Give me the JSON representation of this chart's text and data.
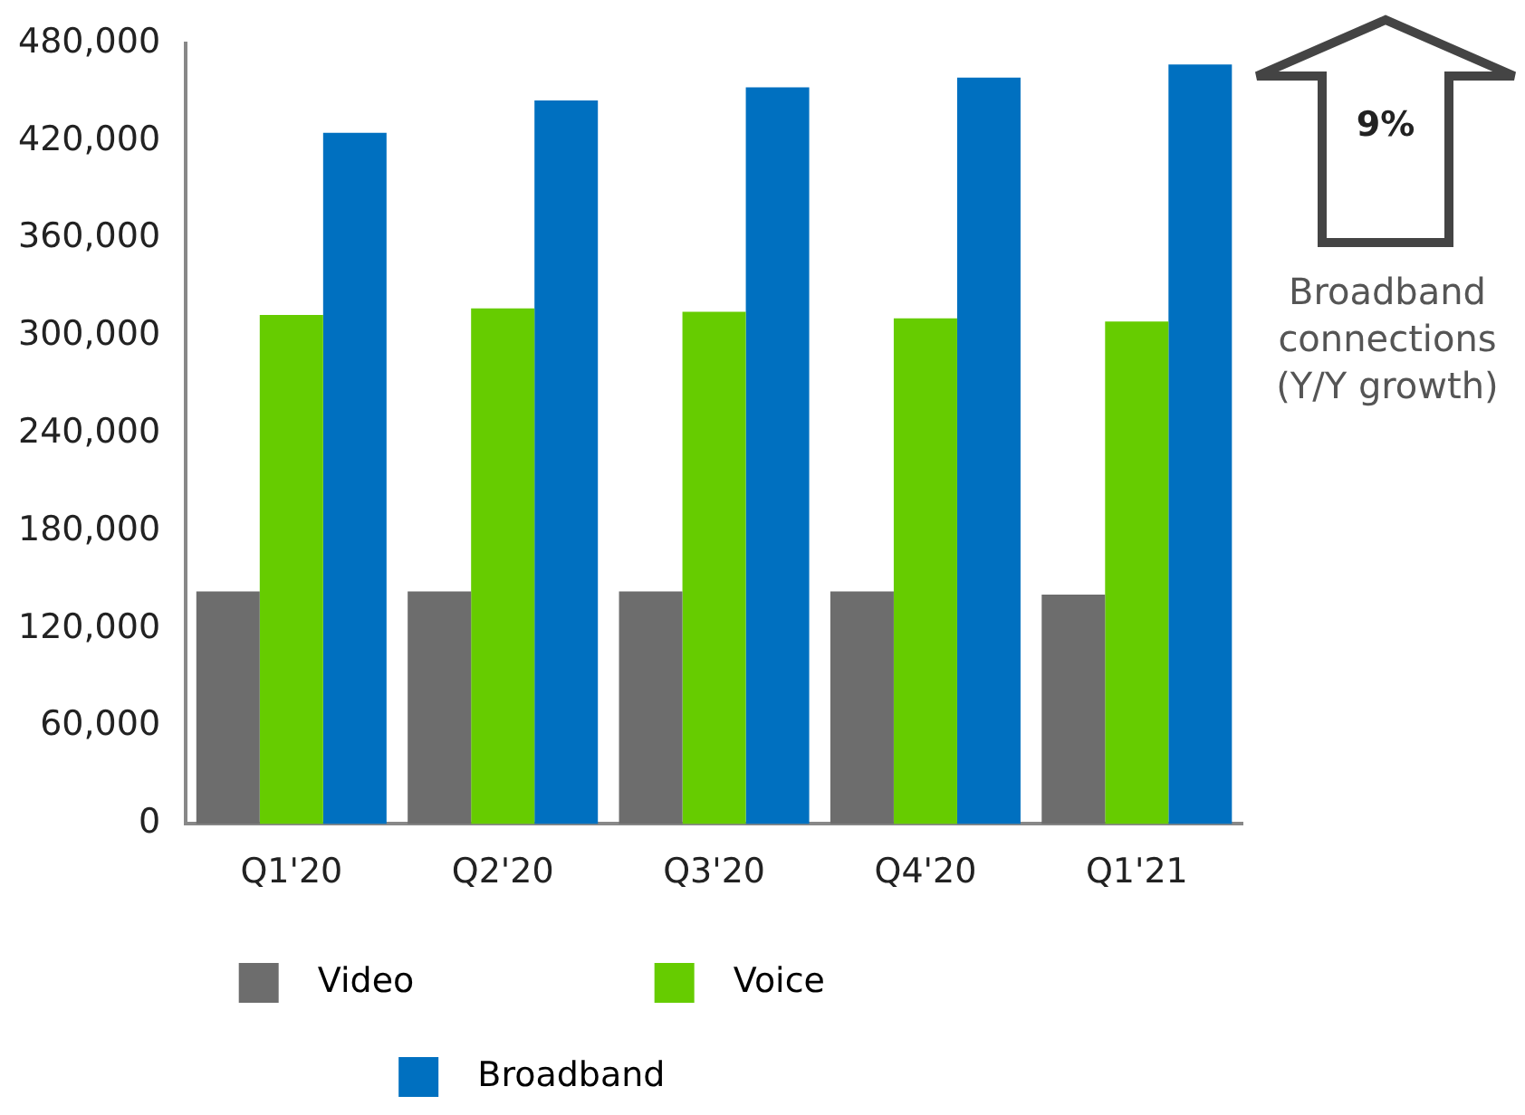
{
  "chart_data": {
    "type": "bar",
    "categories": [
      "Q1'20",
      "Q2'20",
      "Q3'20",
      "Q4'20",
      "Q1'21"
    ],
    "series": [
      {
        "name": "Video",
        "color": "#6d6d6d",
        "values": [
          143000,
          143000,
          143000,
          143000,
          141000
        ]
      },
      {
        "name": "Voice",
        "color": "#66cc00",
        "values": [
          313000,
          317000,
          315000,
          311000,
          309000
        ]
      },
      {
        "name": "Broadband",
        "color": "#0070c0",
        "values": [
          425000,
          445000,
          453000,
          459000,
          467000
        ]
      }
    ],
    "ylim": [
      0,
      480000
    ],
    "yticks": [
      {
        "value": 0,
        "label": "0"
      },
      {
        "value": 60000,
        "label": "60,000"
      },
      {
        "value": 120000,
        "label": "120,000"
      },
      {
        "value": 180000,
        "label": "180,000"
      },
      {
        "value": 240000,
        "label": "240,000"
      },
      {
        "value": 300000,
        "label": "300,000"
      },
      {
        "value": 360000,
        "label": "360,000"
      },
      {
        "value": 420000,
        "label": "420,000"
      },
      {
        "value": 480000,
        "label": "480,000"
      }
    ],
    "grid": false,
    "legend": "bottom",
    "annotations": [
      "9%",
      "Broadband connections (Y/Y growth)"
    ]
  }
}
